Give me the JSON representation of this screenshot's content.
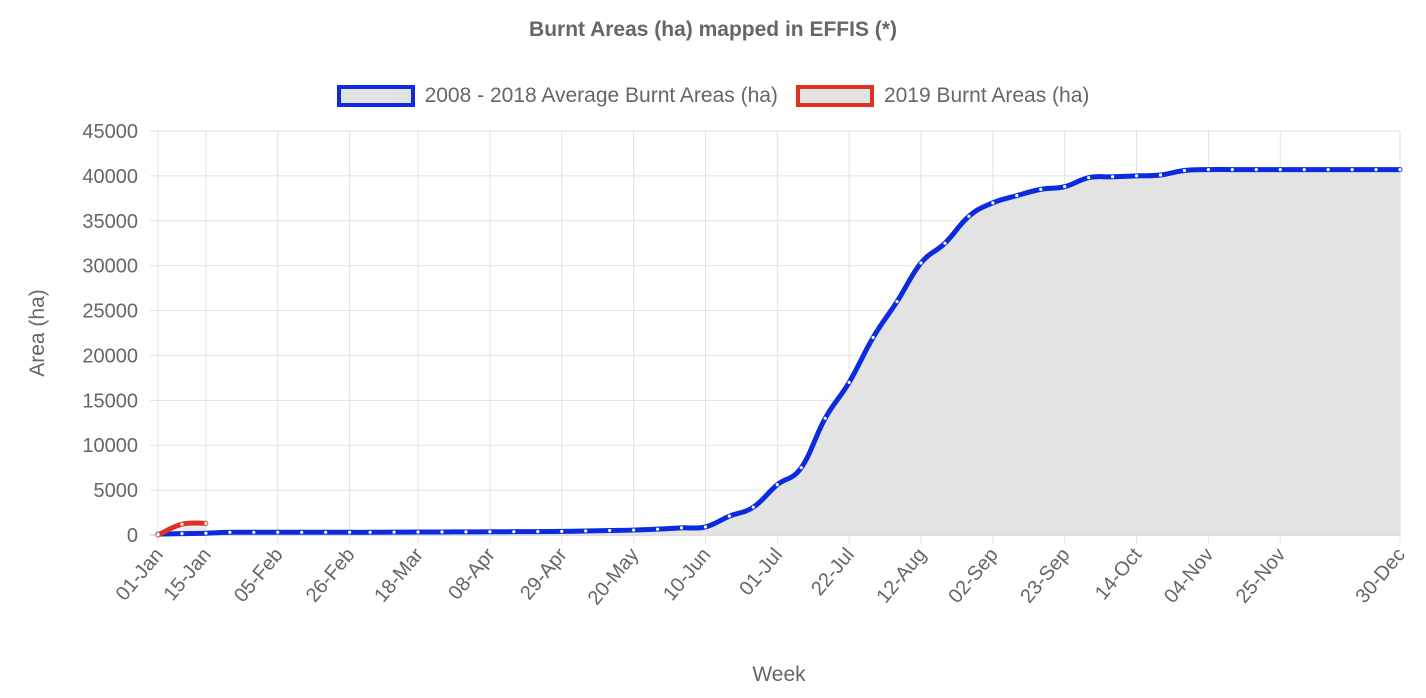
{
  "chart_data": {
    "type": "line",
    "title": "Burnt Areas (ha) mapped in EFFIS (*)",
    "xlabel": "Week",
    "ylabel": "Area (ha)",
    "ylim": [
      0,
      45000
    ],
    "ytick_step": 5000,
    "grid": true,
    "legend_position": "top",
    "x_tick_labels": [
      "01-Jan",
      "15-Jan",
      "05-Feb",
      "26-Feb",
      "18-Mar",
      "08-Apr",
      "29-Apr",
      "20-May",
      "10-Jun",
      "01-Jul",
      "22-Jul",
      "12-Aug",
      "02-Sep",
      "23-Sep",
      "14-Oct",
      "04-Nov",
      "25-Nov",
      "30-Dec"
    ],
    "series": [
      {
        "name": "2008 - 2018 Average Burnt Areas (ha)",
        "color": "#0a2be0",
        "fill": "#e3e3e3",
        "x": [
          "01-Jan",
          "08-Jan",
          "15-Jan",
          "22-Jan",
          "29-Jan",
          "05-Feb",
          "12-Feb",
          "19-Feb",
          "26-Feb",
          "04-Mar",
          "11-Mar",
          "18-Mar",
          "25-Mar",
          "01-Apr",
          "08-Apr",
          "15-Apr",
          "22-Apr",
          "29-Apr",
          "06-May",
          "13-May",
          "20-May",
          "27-May",
          "03-Jun",
          "10-Jun",
          "17-Jun",
          "24-Jun",
          "01-Jul",
          "08-Jul",
          "15-Jul",
          "22-Jul",
          "29-Jul",
          "05-Aug",
          "12-Aug",
          "19-Aug",
          "26-Aug",
          "02-Sep",
          "09-Sep",
          "16-Sep",
          "23-Sep",
          "30-Sep",
          "07-Oct",
          "14-Oct",
          "21-Oct",
          "28-Oct",
          "04-Nov",
          "11-Nov",
          "18-Nov",
          "25-Nov",
          "02-Dec",
          "09-Dec",
          "16-Dec",
          "23-Dec",
          "30-Dec"
        ],
        "values": [
          100,
          150,
          200,
          300,
          300,
          300,
          300,
          300,
          300,
          300,
          320,
          330,
          340,
          350,
          360,
          370,
          380,
          400,
          450,
          500,
          550,
          650,
          800,
          900,
          2100,
          3100,
          5600,
          7500,
          13000,
          17000,
          22000,
          26000,
          30300,
          32500,
          35500,
          37000,
          37800,
          38500,
          38800,
          39800,
          39900,
          40000,
          40100,
          40600,
          40700,
          40700,
          40700,
          40700,
          40700,
          40700,
          40700,
          40700,
          40700
        ]
      },
      {
        "name": "2019 Burnt Areas (ha)",
        "color": "#dd3322",
        "fill": "#e3e3e3",
        "x": [
          "01-Jan",
          "08-Jan",
          "15-Jan"
        ],
        "values": [
          0,
          1200,
          1300
        ]
      }
    ]
  }
}
